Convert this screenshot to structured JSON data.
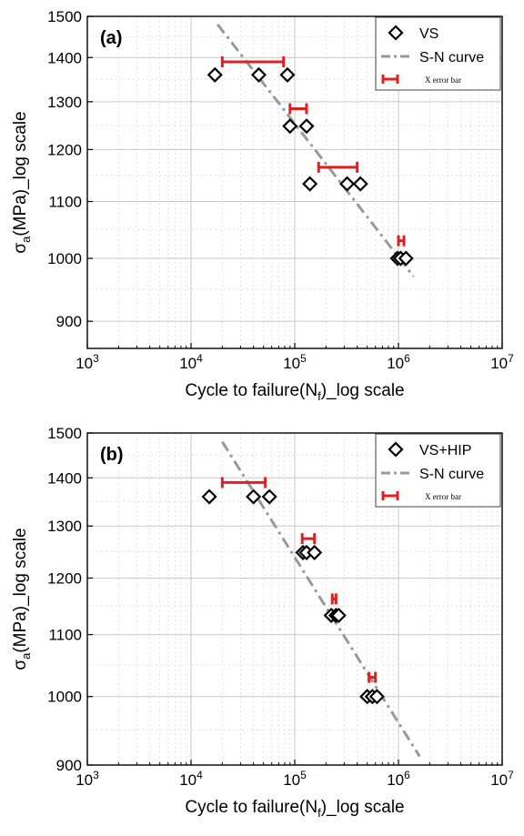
{
  "chart_data": [
    {
      "type": "scatter",
      "panel_label": "(a)",
      "xlabel": "Cycle to failure(N",
      "xlabel_sub": "f",
      "xlabel_suffix": ")_log scale",
      "ylabel": "σ",
      "ylabel_sub": "a",
      "ylabel_suffix": "(MPa)_log scale",
      "x_scale": "log",
      "y_scale": "log",
      "xlim": [
        1000,
        10000000
      ],
      "ylim": [
        860,
        1500
      ],
      "x_ticks": [
        1000,
        10000,
        100000,
        1000000,
        10000000
      ],
      "x_tick_labels": [
        {
          "base": "10",
          "exp": "3"
        },
        {
          "base": "10",
          "exp": "4"
        },
        {
          "base": "10",
          "exp": "5"
        },
        {
          "base": "10",
          "exp": "6"
        },
        {
          "base": "10",
          "exp": "7"
        }
      ],
      "y_ticks": [
        900,
        1000,
        1100,
        1200,
        1300,
        1400,
        1500
      ],
      "y_tick_labels": [
        "900",
        "1000",
        "1100",
        "1200",
        "1300",
        "1400",
        "1500"
      ],
      "grid": true,
      "legend_position": "top-right",
      "series": [
        {
          "name": "VS",
          "marker": "diamond",
          "color": "#000000",
          "points": [
            {
              "x": 17000,
              "y": 1360
            },
            {
              "x": 45000,
              "y": 1360
            },
            {
              "x": 85000,
              "y": 1360
            },
            {
              "x": 90000,
              "y": 1248
            },
            {
              "x": 130000,
              "y": 1248
            },
            {
              "x": 140000,
              "y": 1133
            },
            {
              "x": 320000,
              "y": 1133
            },
            {
              "x": 430000,
              "y": 1133
            },
            {
              "x": 980000,
              "y": 1000
            },
            {
              "x": 1050000,
              "y": 1000
            },
            {
              "x": 1180000,
              "y": 1000
            }
          ]
        },
        {
          "name": "S-N curve",
          "line_style": "dash-dot",
          "color": "#999999",
          "points": [
            {
              "x": 18000,
              "y": 1480
            },
            {
              "x": 1400000,
              "y": 970
            }
          ]
        },
        {
          "name": "X error bar",
          "color": "#e02020",
          "error_bars": [
            {
              "y": 1390,
              "x_min": 20000,
              "x_max": 78000
            },
            {
              "y": 1285,
              "x_min": 90000,
              "x_max": 130000
            },
            {
              "y": 1165,
              "x_min": 170000,
              "x_max": 400000
            },
            {
              "y": 1030,
              "x_min": 1000000,
              "x_max": 1130000
            }
          ]
        }
      ]
    },
    {
      "type": "scatter",
      "panel_label": "(b)",
      "xlabel": "Cycle to failure(N",
      "xlabel_sub": "f",
      "xlabel_suffix": ")_log scale",
      "ylabel": "σ",
      "ylabel_sub": "a",
      "ylabel_suffix": "(MPa)_log scale",
      "x_scale": "log",
      "y_scale": "log",
      "xlim": [
        1000,
        10000000
      ],
      "ylim": [
        900,
        1500
      ],
      "x_ticks": [
        1000,
        10000,
        100000,
        1000000,
        10000000
      ],
      "x_tick_labels": [
        {
          "base": "10",
          "exp": "3"
        },
        {
          "base": "10",
          "exp": "4"
        },
        {
          "base": "10",
          "exp": "5"
        },
        {
          "base": "10",
          "exp": "6"
        },
        {
          "base": "10",
          "exp": "7"
        }
      ],
      "y_ticks": [
        900,
        1000,
        1100,
        1200,
        1300,
        1400,
        1500
      ],
      "y_tick_labels": [
        "900",
        "1000",
        "1100",
        "1200",
        "1300",
        "1400",
        "1500"
      ],
      "grid": true,
      "legend_position": "top-right",
      "series": [
        {
          "name": "VS+HIP",
          "marker": "diamond",
          "color": "#000000",
          "points": [
            {
              "x": 15000,
              "y": 1360
            },
            {
              "x": 40000,
              "y": 1360
            },
            {
              "x": 57000,
              "y": 1360
            },
            {
              "x": 120000,
              "y": 1248
            },
            {
              "x": 130000,
              "y": 1248
            },
            {
              "x": 155000,
              "y": 1248
            },
            {
              "x": 225000,
              "y": 1133
            },
            {
              "x": 250000,
              "y": 1133
            },
            {
              "x": 265000,
              "y": 1133
            },
            {
              "x": 500000,
              "y": 1000
            },
            {
              "x": 560000,
              "y": 1000
            },
            {
              "x": 620000,
              "y": 1000
            }
          ]
        },
        {
          "name": "S-N curve",
          "line_style": "dash-dot",
          "color": "#999999",
          "points": [
            {
              "x": 20000,
              "y": 1480
            },
            {
              "x": 1600000,
              "y": 912
            }
          ]
        },
        {
          "name": "X error bar",
          "color": "#e02020",
          "error_bars": [
            {
              "y": 1390,
              "x_min": 20000,
              "x_max": 52000
            },
            {
              "y": 1275,
              "x_min": 118000,
              "x_max": 155000
            },
            {
              "y": 1162,
              "x_min": 230000,
              "x_max": 250000
            },
            {
              "y": 1030,
              "x_min": 520000,
              "x_max": 600000
            }
          ]
        }
      ]
    }
  ]
}
